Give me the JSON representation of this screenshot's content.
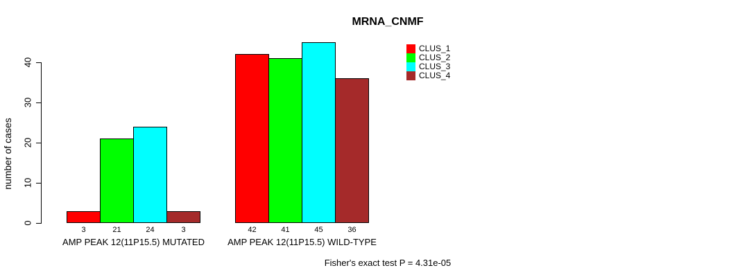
{
  "chart_data": {
    "type": "bar",
    "title": "MRNA_CNMF",
    "ylabel": "number of cases",
    "xlabel": "",
    "footnote": "Fisher's exact test P = 4.31e-05",
    "categories": [
      "AMP PEAK 12(11P15.5) MUTATED",
      "AMP PEAK 12(11P15.5) WILD-TYPE"
    ],
    "series": [
      {
        "name": "CLUS_1",
        "color": "#FF0000",
        "values": [
          3,
          42
        ]
      },
      {
        "name": "CLUS_2",
        "color": "#00FF00",
        "values": [
          21,
          41
        ]
      },
      {
        "name": "CLUS_3",
        "color": "#00FFFF",
        "values": [
          24,
          45
        ]
      },
      {
        "name": "CLUS_4",
        "color": "#A52A2A",
        "values": [
          3,
          36
        ]
      }
    ],
    "bar_value_labels": [
      [
        3,
        21,
        24,
        3
      ],
      [
        42,
        41,
        45,
        36
      ]
    ],
    "yticks": [
      0,
      10,
      20,
      30,
      40
    ],
    "ylim": [
      0,
      45
    ],
    "grid": false,
    "legend_position": "top-right-inside",
    "axis_color": "#000000",
    "background_color": "#FFFFFF"
  }
}
